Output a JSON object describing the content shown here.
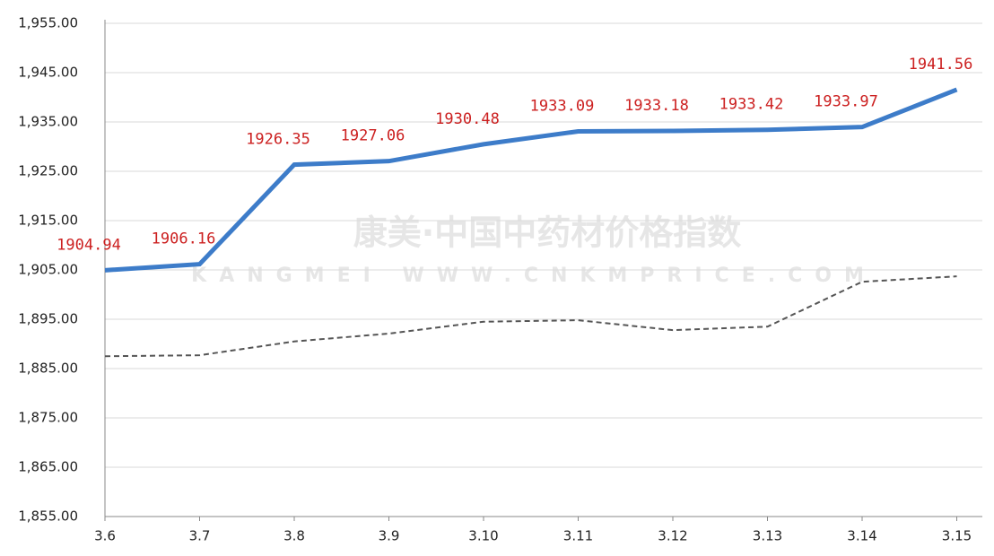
{
  "chart_data": {
    "type": "line",
    "watermark": {
      "title": "康美·中国中药材价格指数",
      "subtitle": "KANGMEI WWW.CNKMPRICE.COM"
    },
    "categories": [
      "3.6",
      "3.7",
      "3.8",
      "3.9",
      "3.10",
      "3.11",
      "3.12",
      "3.13",
      "3.14",
      "3.15"
    ],
    "series": [
      {
        "color": "#3d7cc9",
        "style": "solid",
        "show_labels": true,
        "values": [
          1904.94,
          1906.16,
          1926.35,
          1927.06,
          1930.48,
          1933.09,
          1933.18,
          1933.42,
          1933.97,
          1941.56
        ]
      },
      {
        "color": "#555555",
        "style": "dashed",
        "show_labels": false,
        "values": [
          1887.5,
          1887.7,
          1890.5,
          1892.1,
          1894.5,
          1894.8,
          1892.8,
          1893.5,
          1902.6,
          1903.7
        ]
      }
    ],
    "ylim": [
      1855,
      1955
    ],
    "yticks": [
      {
        "value": 1855,
        "label": "1,855.00"
      },
      {
        "value": 1865,
        "label": "1,865.00"
      },
      {
        "value": 1875,
        "label": "1,875.00"
      },
      {
        "value": 1885,
        "label": "1,885.00"
      },
      {
        "value": 1895,
        "label": "1,895.00"
      },
      {
        "value": 1905,
        "label": "1,905.00"
      },
      {
        "value": 1915,
        "label": "1,915.00"
      },
      {
        "value": 1925,
        "label": "1,925.00"
      },
      {
        "value": 1935,
        "label": "1,935.00"
      },
      {
        "value": 1945,
        "label": "1,945.00"
      },
      {
        "value": 1955,
        "label": "1,955.00"
      }
    ],
    "grid": true
  }
}
